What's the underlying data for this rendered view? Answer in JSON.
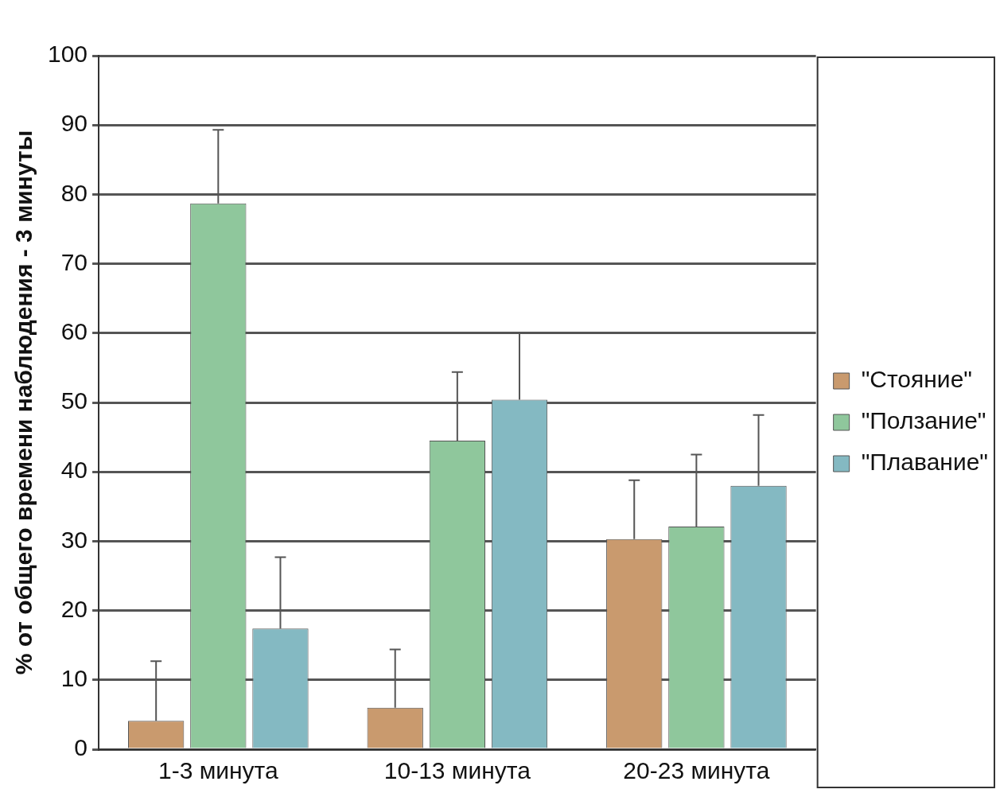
{
  "chart_data": {
    "type": "bar",
    "ylabel": "% от общего времени наблюдения - 3 минуты",
    "categories": [
      "1-3 минута",
      "10-13 минута",
      "20-23 минута"
    ],
    "series": [
      {
        "name": "\"Стояние\"",
        "color": "#c99a6e",
        "values": [
          4.1,
          6.0,
          30.3
        ],
        "errors": [
          [
            4.1,
            12.7
          ],
          [
            6.0,
            14.4
          ],
          [
            30.3,
            38.8
          ]
        ]
      },
      {
        "name": "\"Ползание\"",
        "color": "#8fc79c",
        "values": [
          78.7,
          44.5,
          32.1
        ],
        "errors": [
          [
            78.7,
            89.3
          ],
          [
            44.5,
            54.4
          ],
          [
            32.1,
            42.5
          ]
        ]
      },
      {
        "name": "\"Плавание\"",
        "color": "#84b9c2",
        "values": [
          17.4,
          50.4,
          38.0
        ],
        "errors": [
          [
            17.4,
            27.7
          ],
          [
            50.4,
            60.1
          ],
          [
            38.0,
            48.2
          ]
        ]
      }
    ],
    "ylim": [
      0,
      100
    ],
    "yticks": [
      0,
      10,
      20,
      30,
      40,
      50,
      60,
      70,
      80,
      90,
      100
    ],
    "grid": "y",
    "legend": "right"
  }
}
